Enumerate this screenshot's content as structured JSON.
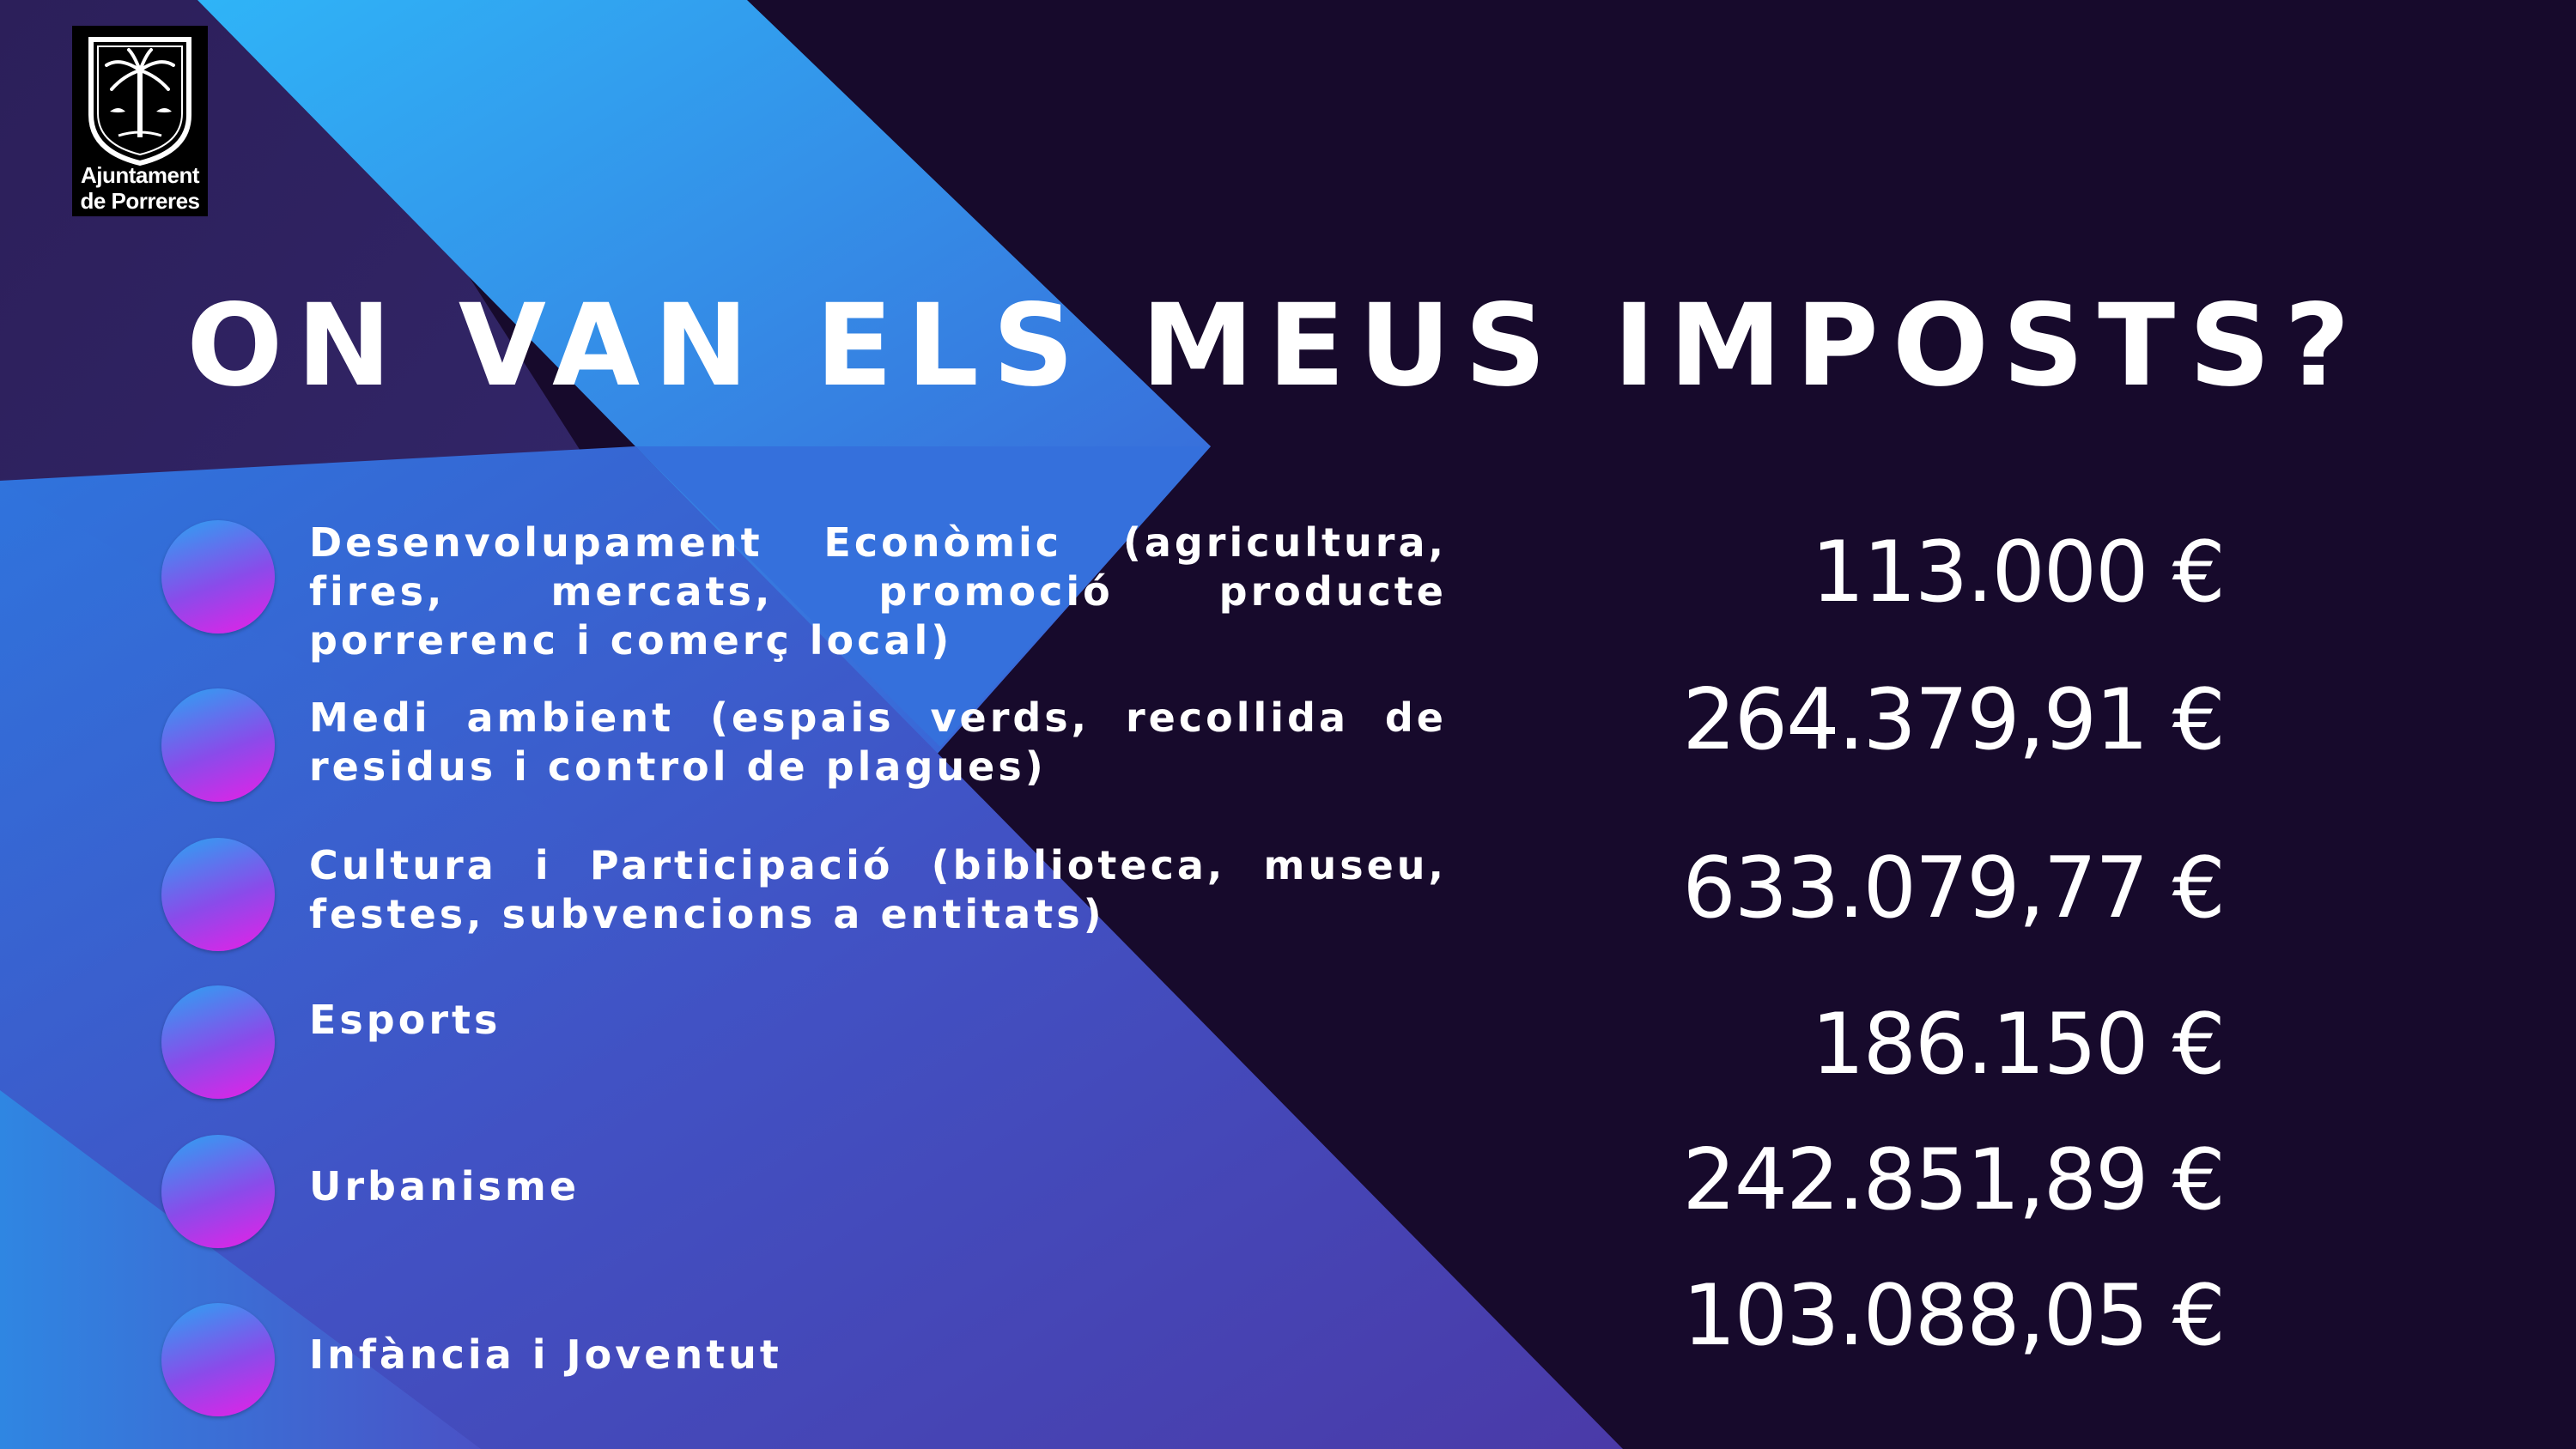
{
  "logo": {
    "line1": "Ajuntament",
    "line2": "de Porreres"
  },
  "title": "ON VAN ELS MEUS IMPOSTS?",
  "items": [
    {
      "label": "Desenvolupament Econòmic (agricultura, fires, mercats, promoció producte porrerenc i comerç local)",
      "amount": "113.000 €"
    },
    {
      "label": "Medi ambient (espais verds, recollida de residus i control de plagues)",
      "amount": "264.379,91 €"
    },
    {
      "label": "Cultura i Participació (biblioteca, museu, festes, subvencions a entitats)",
      "amount": "633.079,77 €"
    },
    {
      "label": "Esports",
      "amount": "186.150 €"
    },
    {
      "label": "Urbanisme",
      "amount": "242.851,89 €"
    },
    {
      "label": "Infància i Joventut",
      "amount": "103.088,05 €"
    }
  ],
  "colors": {
    "background": "#170a2c",
    "accent_cyan": "#2aa4f2",
    "accent_magenta": "#e81fe6",
    "text": "#ffffff"
  }
}
